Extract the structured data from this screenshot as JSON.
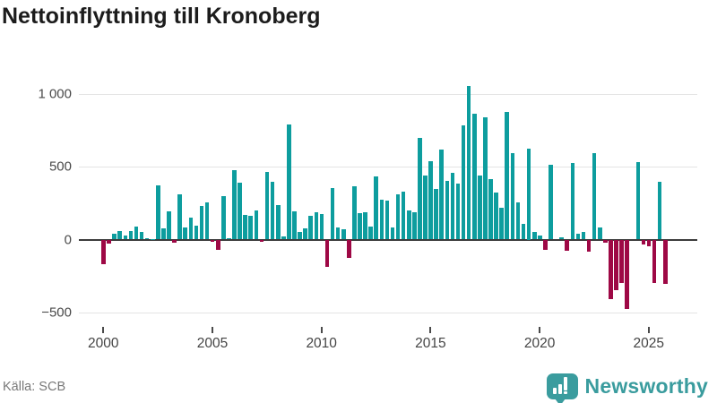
{
  "title": "Nettoinflyttning till Kronoberg",
  "source": "Källa: SCB",
  "brand": {
    "name": "Newsworthy",
    "icon": "newsworthy-speech-bubble-barchart-icon"
  },
  "colors": {
    "positive_bar": "#0d9d9e",
    "negative_bar": "#9e0845",
    "brand_teal": "#3a9c9e",
    "axis_line": "#3c3c3c",
    "gridline": "#e4e4e4",
    "tick_text": "#4a4a4a",
    "title_text": "#1c1c1c",
    "source_text": "#787878"
  },
  "chart_data": {
    "type": "bar",
    "title": "Nettoinflyttning till Kronoberg",
    "frequency": "quarterly",
    "start_period": "2000Q1",
    "end_period": "2025Q4",
    "x_tick_labels": [
      "2000",
      "2005",
      "2010",
      "2015",
      "2020",
      "2025"
    ],
    "y_ticks": [
      1000,
      500,
      0,
      -500
    ],
    "y_tick_labels": [
      "1 000",
      "500",
      "0",
      "−500"
    ],
    "ylim": [
      -560,
      1090
    ],
    "grid": "horizontal-only",
    "legend": "none",
    "values": [
      -170,
      -25,
      40,
      60,
      30,
      60,
      90,
      50,
      10,
      5,
      370,
      75,
      195,
      -20,
      310,
      80,
      150,
      95,
      230,
      255,
      -15,
      -70,
      300,
      10,
      475,
      390,
      170,
      165,
      200,
      -15,
      465,
      395,
      235,
      20,
      790,
      195,
      55,
      75,
      160,
      185,
      175,
      -190,
      355,
      85,
      70,
      -125,
      365,
      180,
      185,
      90,
      430,
      275,
      265,
      80,
      310,
      330,
      200,
      185,
      695,
      440,
      535,
      350,
      620,
      405,
      460,
      385,
      785,
      1055,
      865,
      440,
      840,
      415,
      320,
      215,
      875,
      595,
      255,
      110,
      625,
      55,
      25,
      -70,
      510,
      0,
      15,
      -75,
      525,
      40,
      55,
      -80,
      595,
      80,
      -20,
      -410,
      -345,
      -300,
      -475,
      0,
      530,
      -35,
      -45,
      -295,
      395,
      -305
    ]
  }
}
